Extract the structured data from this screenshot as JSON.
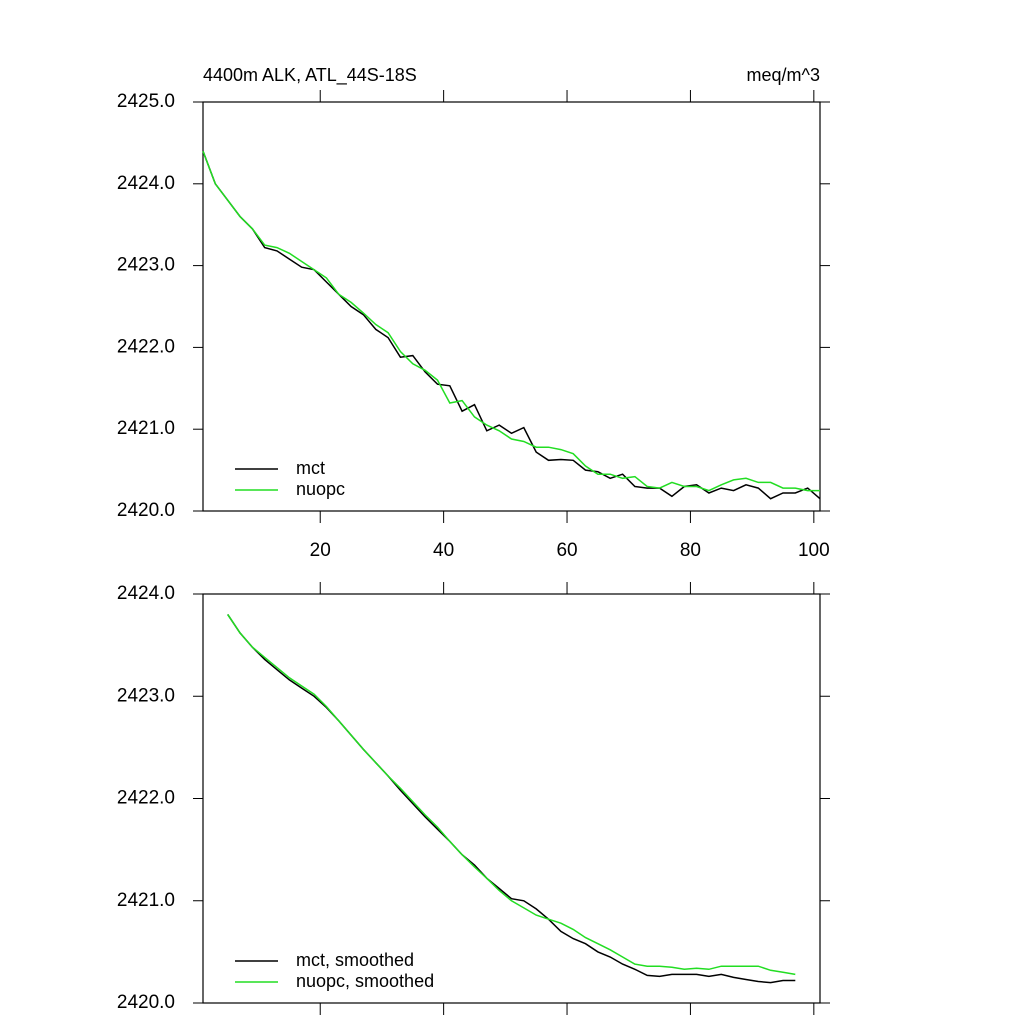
{
  "chart_data": [
    {
      "type": "line",
      "title": "4400m ALK, ATL_44S-18S",
      "subtitle": "meq/m^3",
      "x": [
        1,
        3,
        5,
        7,
        9,
        11,
        13,
        15,
        17,
        19,
        21,
        23,
        25,
        27,
        29,
        31,
        33,
        35,
        37,
        39,
        41,
        43,
        45,
        47,
        49,
        51,
        53,
        55,
        57,
        59,
        61,
        63,
        65,
        67,
        69,
        71,
        73,
        75,
        77,
        79,
        81,
        83,
        85,
        87,
        89,
        91,
        93,
        95,
        97,
        99,
        101
      ],
      "series": [
        {
          "name": "mct",
          "color": "#000000",
          "values": [
            2424.4,
            2424.0,
            2423.8,
            2423.6,
            2423.45,
            2423.22,
            2423.18,
            2423.08,
            2422.98,
            2422.95,
            2422.8,
            2422.65,
            2422.5,
            2422.4,
            2422.22,
            2422.12,
            2421.88,
            2421.9,
            2421.7,
            2421.55,
            2421.53,
            2421.22,
            2421.3,
            2420.98,
            2421.05,
            2420.95,
            2421.02,
            2420.72,
            2420.62,
            2420.63,
            2420.62,
            2420.5,
            2420.48,
            2420.4,
            2420.45,
            2420.3,
            2420.28,
            2420.28,
            2420.18,
            2420.3,
            2420.32,
            2420.22,
            2420.28,
            2420.25,
            2420.32,
            2420.28,
            2420.15,
            2420.22,
            2420.22,
            2420.28,
            2420.15
          ]
        },
        {
          "name": "nuopc",
          "color": "#22dd22",
          "values": [
            2424.4,
            2424.0,
            2423.8,
            2423.6,
            2423.45,
            2423.25,
            2423.22,
            2423.15,
            2423.05,
            2422.95,
            2422.85,
            2422.65,
            2422.55,
            2422.42,
            2422.28,
            2422.18,
            2421.95,
            2421.8,
            2421.72,
            2421.6,
            2421.32,
            2421.35,
            2421.15,
            2421.05,
            2420.98,
            2420.88,
            2420.85,
            2420.78,
            2420.78,
            2420.75,
            2420.7,
            2420.55,
            2420.45,
            2420.45,
            2420.4,
            2420.42,
            2420.3,
            2420.28,
            2420.35,
            2420.3,
            2420.3,
            2420.25,
            2420.32,
            2420.38,
            2420.4,
            2420.35,
            2420.35,
            2420.28,
            2420.28,
            2420.25,
            2420.25
          ]
        }
      ],
      "xlim": [
        1,
        101
      ],
      "xticks": [
        20,
        40,
        60,
        80,
        100
      ],
      "ylim": [
        2420,
        2425
      ],
      "yticks": [
        {
          "value": 2420,
          "label": "2420.0"
        },
        {
          "value": 2421,
          "label": "2421.0"
        },
        {
          "value": 2422,
          "label": "2422.0"
        },
        {
          "value": 2423,
          "label": "2423.0"
        },
        {
          "value": 2424,
          "label": "2424.0"
        },
        {
          "value": 2425,
          "label": "2425.0"
        }
      ],
      "legend": "bottom-left"
    },
    {
      "type": "line",
      "x": [
        5,
        7,
        9,
        11,
        13,
        15,
        17,
        19,
        21,
        23,
        25,
        27,
        29,
        31,
        33,
        35,
        37,
        39,
        41,
        43,
        45,
        47,
        49,
        51,
        53,
        55,
        57,
        59,
        61,
        63,
        65,
        67,
        69,
        71,
        73,
        75,
        77,
        79,
        81,
        83,
        85,
        87,
        89,
        91,
        93,
        95,
        97
      ],
      "series": [
        {
          "name": "mct, smoothed",
          "color": "#000000",
          "values": [
            2423.8,
            2423.62,
            2423.48,
            2423.36,
            2423.26,
            2423.16,
            2423.08,
            2423.0,
            2422.89,
            2422.76,
            2422.62,
            2422.48,
            2422.35,
            2422.22,
            2422.08,
            2421.95,
            2421.82,
            2421.7,
            2421.58,
            2421.45,
            2421.35,
            2421.22,
            2421.12,
            2421.02,
            2421.0,
            2420.92,
            2420.82,
            2420.7,
            2420.63,
            2420.58,
            2420.5,
            2420.45,
            2420.38,
            2420.33,
            2420.27,
            2420.26,
            2420.28,
            2420.28,
            2420.28,
            2420.26,
            2420.28,
            2420.25,
            2420.23,
            2420.21,
            2420.2,
            2420.22,
            2420.22
          ]
        },
        {
          "name": "nuopc, smoothed",
          "color": "#22dd22",
          "values": [
            2423.8,
            2423.62,
            2423.48,
            2423.38,
            2423.28,
            2423.18,
            2423.1,
            2423.02,
            2422.9,
            2422.76,
            2422.62,
            2422.48,
            2422.35,
            2422.22,
            2422.1,
            2421.97,
            2421.84,
            2421.72,
            2421.58,
            2421.45,
            2421.33,
            2421.22,
            2421.1,
            2421.0,
            2420.93,
            2420.86,
            2420.82,
            2420.78,
            2420.72,
            2420.64,
            2420.58,
            2420.52,
            2420.45,
            2420.38,
            2420.36,
            2420.36,
            2420.35,
            2420.33,
            2420.34,
            2420.33,
            2420.36,
            2420.36,
            2420.36,
            2420.36,
            2420.32,
            2420.3,
            2420.28
          ]
        }
      ],
      "xlim": [
        1,
        101
      ],
      "xticks": [
        20,
        40,
        60,
        80,
        100
      ],
      "ylim": [
        2420,
        2424
      ],
      "yticks": [
        {
          "value": 2420,
          "label": "2420.0"
        },
        {
          "value": 2421,
          "label": "2421.0"
        },
        {
          "value": 2422,
          "label": "2422.0"
        },
        {
          "value": 2423,
          "label": "2423.0"
        },
        {
          "value": 2424,
          "label": "2424.0"
        }
      ],
      "legend": "bottom-left"
    }
  ]
}
